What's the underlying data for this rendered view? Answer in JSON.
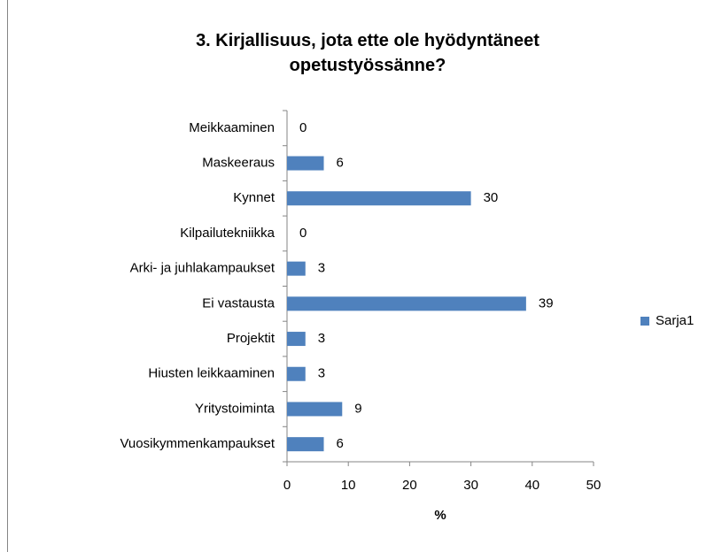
{
  "chart_data": {
    "type": "bar",
    "orientation": "horizontal",
    "title": "3. Kirjallisuus, jota ette ole hyödyntäneet opetustyössänne?",
    "x_label": "%",
    "categories": [
      "Meikkaaminen",
      "Maskeeraus",
      "Kynnet",
      "Kilpailutekniikka",
      "Arki- ja juhlakampaukset",
      "Ei vastausta",
      "Projektit",
      "Hiusten leikkaaminen",
      "Yritystoiminta",
      "Vuosikymmenkampaukset"
    ],
    "series": [
      {
        "name": "Sarja1",
        "color": "#4f81bd",
        "values": [
          0,
          6,
          30,
          0,
          3,
          39,
          3,
          3,
          9,
          6
        ]
      }
    ],
    "xlim": [
      0,
      50
    ],
    "xticks": [
      0,
      10,
      20,
      30,
      40,
      50
    ],
    "grid": false,
    "legend": "right",
    "data_labels": true
  }
}
